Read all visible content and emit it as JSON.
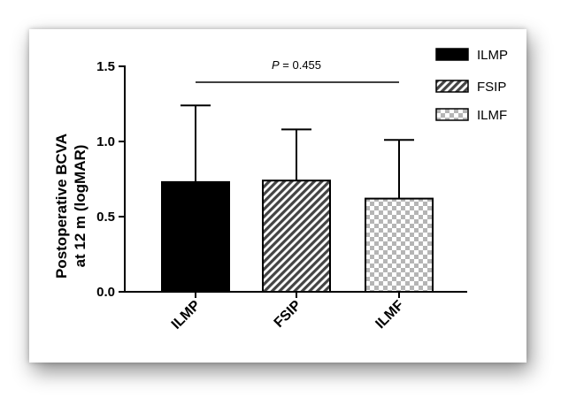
{
  "chart_data": {
    "type": "bar",
    "categories": [
      "ILMP",
      "FSIP",
      "ILMF"
    ],
    "values": [
      0.73,
      0.74,
      0.62
    ],
    "error_upper": [
      1.24,
      1.08,
      1.01
    ],
    "ylabel": [
      "Postoperative BCVA",
      "at 12 m (logMAR)"
    ],
    "yticks": [
      "0.0",
      "0.5",
      "1.0",
      "1.5"
    ],
    "ylim": [
      0,
      1.5
    ],
    "annotation": {
      "p_label": "P",
      "p_text": " = 0.455"
    },
    "legend": {
      "placement": "top-right",
      "entries": [
        "ILMP",
        "FSIP",
        "ILMF"
      ]
    },
    "fills": [
      "solid-black",
      "diagonal-hatch",
      "checkerboard"
    ],
    "grid": false
  }
}
